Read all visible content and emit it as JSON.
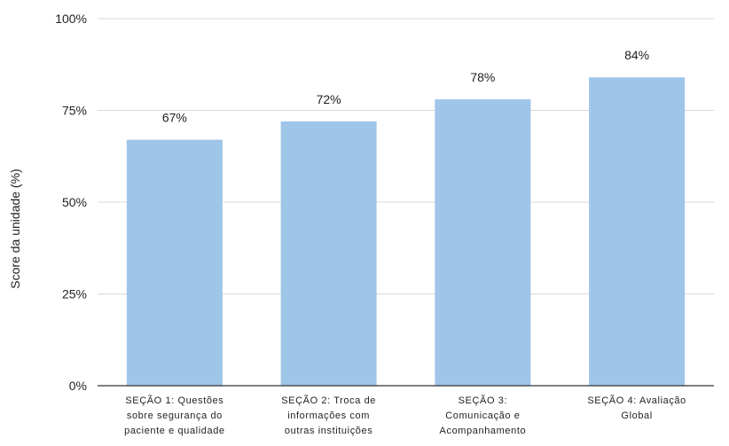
{
  "chart_data": {
    "type": "bar",
    "title": "",
    "xlabel": "",
    "ylabel": "Score da unidade (%)",
    "ylim": [
      0,
      100
    ],
    "yticks": [
      0,
      25,
      50,
      75,
      100
    ],
    "ytick_labels": [
      "0%",
      "25%",
      "50%",
      "75%",
      "100%"
    ],
    "categories": [
      [
        "SEÇÃO 1: Questões",
        "sobre segurança do",
        "paciente e qualidade"
      ],
      [
        "SEÇÃO 2: Troca de",
        "informações com",
        "outras instituições"
      ],
      [
        "SEÇÃO 3:",
        "Comunicação e",
        "Acompanhamento"
      ],
      [
        "SEÇÃO 4: Avaliação",
        "Global"
      ]
    ],
    "values": [
      67,
      72,
      78,
      84
    ],
    "data_labels": [
      "67%",
      "72%",
      "78%",
      "84%"
    ],
    "grid": true,
    "legend": "none",
    "colors": {
      "bar": "#9fc5e8",
      "grid": "#d9d9d9",
      "axis": "#333333"
    }
  }
}
